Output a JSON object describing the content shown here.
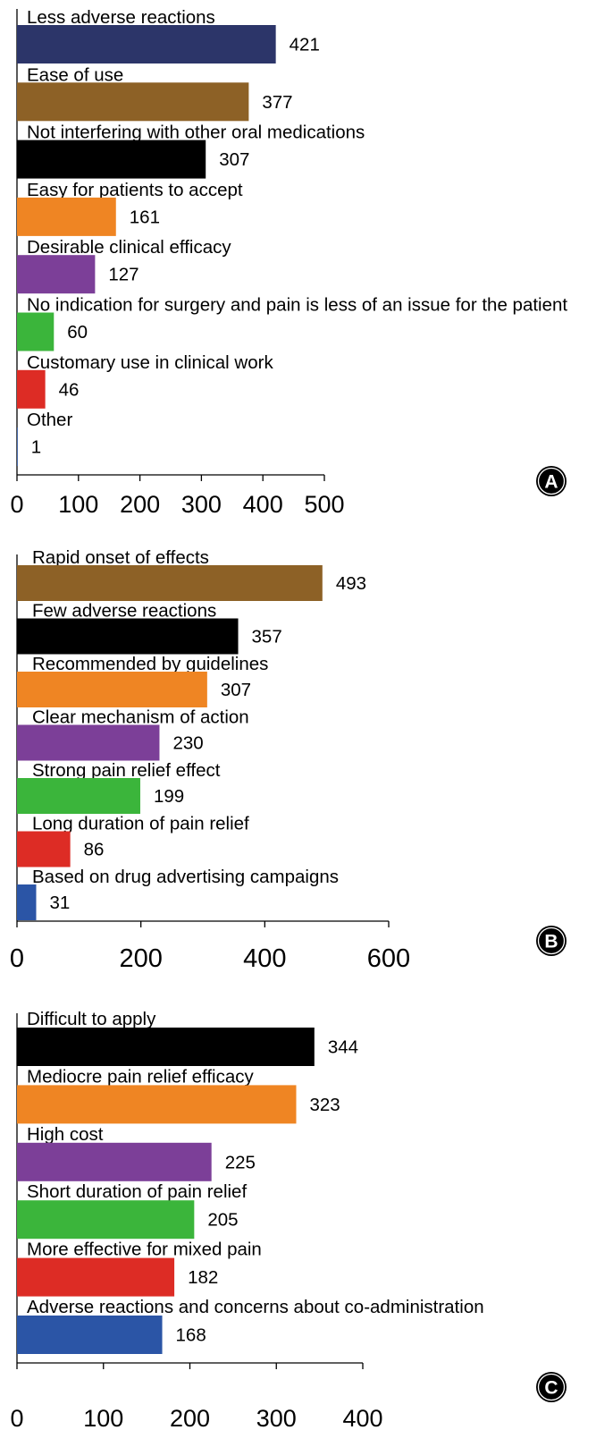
{
  "chart_data": [
    {
      "type": "bar",
      "orientation": "horizontal",
      "panel_label": "A",
      "categories": [
        "Less adverse reactions",
        "Ease of use",
        "Not interfering with other oral medications",
        "Easy for patients to accept",
        "Desirable clinical efficacy",
        "No indication for surgery and pain is less of an issue for the patient",
        "Customary use in clinical work",
        "Other"
      ],
      "values": [
        421,
        377,
        307,
        161,
        127,
        60,
        46,
        1
      ],
      "colors": [
        "#2c3569",
        "#8d6126",
        "#000000",
        "#ef8523",
        "#7c3f98",
        "#3bb53b",
        "#dd2c25",
        "#2b55a6"
      ],
      "xlim": [
        0,
        500
      ],
      "xticks": [
        0,
        100,
        200,
        300,
        400,
        500
      ],
      "grid": false
    },
    {
      "type": "bar",
      "orientation": "horizontal",
      "panel_label": "B",
      "categories": [
        "Rapid onset of effects",
        "Few adverse reactions",
        "Recommended by guidelines",
        "Clear mechanism of action",
        "Strong pain relief effect",
        "Long duration of pain relief",
        "Based on drug advertising campaigns"
      ],
      "values": [
        493,
        357,
        307,
        230,
        199,
        86,
        31
      ],
      "colors": [
        "#8d6126",
        "#000000",
        "#ef8523",
        "#7c3f98",
        "#3bb53b",
        "#dd2c25",
        "#2b55a6"
      ],
      "xlim": [
        0,
        600
      ],
      "xticks": [
        0,
        200,
        400,
        600
      ],
      "grid": false
    },
    {
      "type": "bar",
      "orientation": "horizontal",
      "panel_label": "C",
      "categories": [
        "Difficult to apply",
        "Mediocre pain relief efficacy",
        "High cost",
        "Short duration of pain relief",
        "More effective for mixed pain",
        "Adverse reactions and concerns about co-administration"
      ],
      "values": [
        344,
        323,
        225,
        205,
        182,
        168
      ],
      "colors": [
        "#000000",
        "#ef8523",
        "#7c3f98",
        "#3bb53b",
        "#dd2c25",
        "#2b55a6"
      ],
      "xlim": [
        0,
        400
      ],
      "xticks": [
        0,
        100,
        200,
        300,
        400
      ],
      "grid": false
    }
  ]
}
